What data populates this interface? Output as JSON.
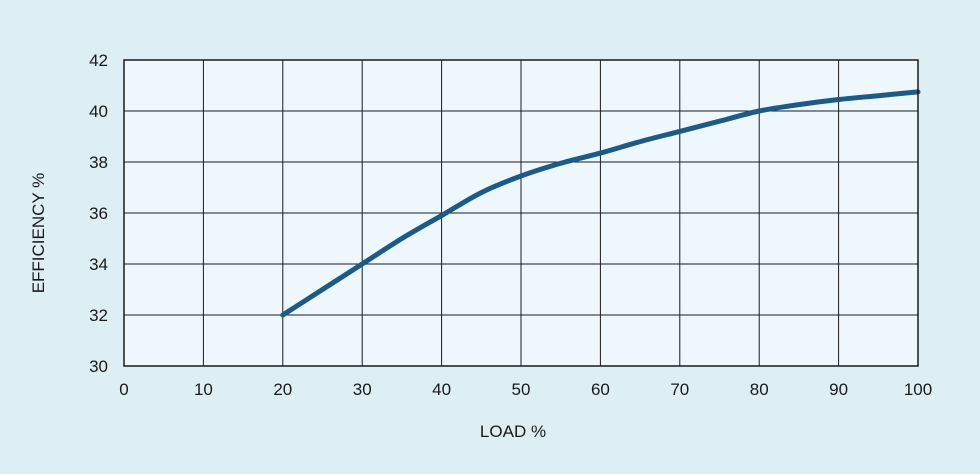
{
  "chart_data": {
    "type": "line",
    "title": "",
    "xlabel": "LOAD %",
    "ylabel": "EFFICIENCY %",
    "xlim": [
      0,
      100
    ],
    "ylim": [
      30,
      42
    ],
    "x_ticks": [
      0,
      10,
      20,
      30,
      40,
      50,
      60,
      70,
      80,
      90,
      100
    ],
    "y_ticks": [
      30,
      32,
      34,
      36,
      38,
      40,
      42
    ],
    "grid": true,
    "legend": "none",
    "colors": {
      "background": "#ddeef5",
      "plot_area": "#eef8fc",
      "grid": "#1a1a1a",
      "series": "#1a5b8a"
    },
    "series": [
      {
        "x": [
          20,
          25,
          30,
          35,
          40,
          45,
          50,
          55,
          60,
          65,
          70,
          75,
          80,
          85,
          90,
          95,
          100
        ],
        "y": [
          32.0,
          33.0,
          34.0,
          35.0,
          35.9,
          36.8,
          37.45,
          37.95,
          38.35,
          38.8,
          39.2,
          39.6,
          40.0,
          40.25,
          40.45,
          40.6,
          40.75
        ]
      }
    ]
  }
}
